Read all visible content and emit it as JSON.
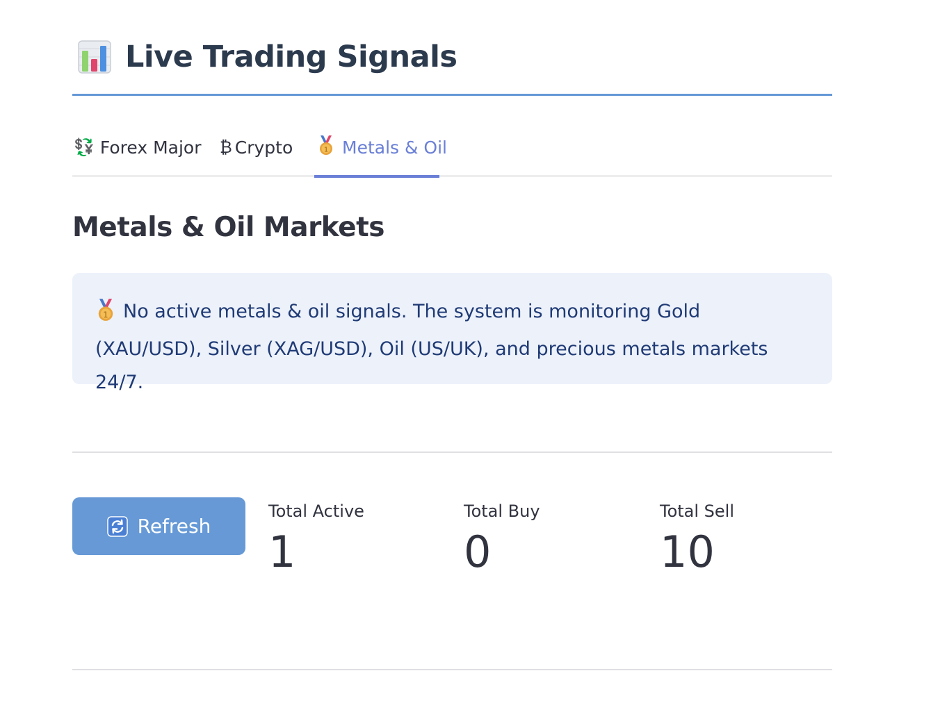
{
  "header": {
    "title": "Live Trading Signals",
    "icon": "bar-chart-icon"
  },
  "tabs": [
    {
      "label": "Forex Major",
      "icon": "currency-exchange-icon",
      "glyph": "💱",
      "active": false
    },
    {
      "label": "Crypto",
      "icon": "bitcoin-icon",
      "glyph": "₿",
      "active": false
    },
    {
      "label": "Metals & Oil",
      "icon": "medal-icon",
      "glyph": "🥇",
      "active": true
    }
  ],
  "section": {
    "title": "Metals & Oil Markets"
  },
  "info": {
    "icon": "medal-icon",
    "message": "No active metals & oil signals. The system is monitoring Gold (XAU/USD), Silver (XAG/USD), Oil (US/UK), and precious metals markets 24/7."
  },
  "refresh_button": {
    "label": "Refresh",
    "icon": "refresh-icon"
  },
  "metrics": [
    {
      "label": "Total Active",
      "value": "1"
    },
    {
      "label": "Total Buy",
      "value": "0"
    },
    {
      "label": "Total Sell",
      "value": "10"
    }
  ],
  "colors": {
    "accent": "#6699d6",
    "active_tab": "#6a7fd6",
    "info_bg": "#ecf1fa",
    "info_text": "#1f3a75"
  }
}
